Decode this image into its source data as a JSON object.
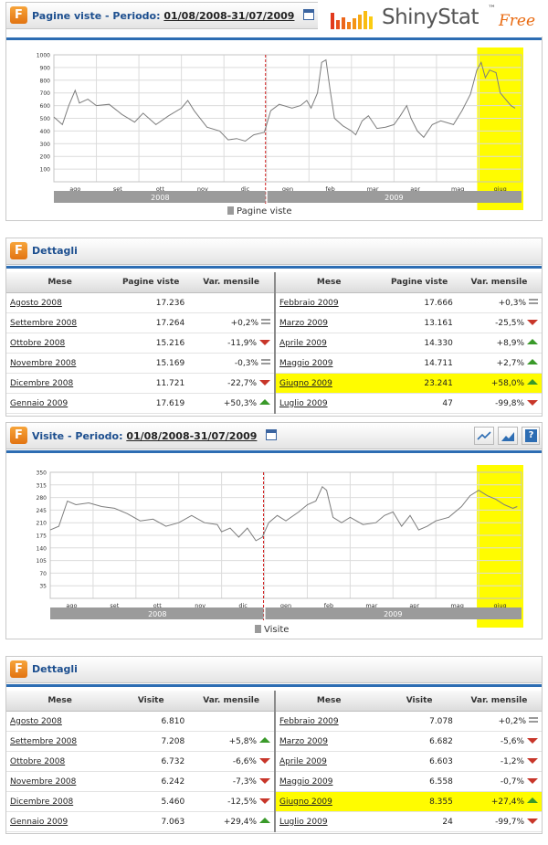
{
  "brand": {
    "name": "ShinyStat",
    "tm": "™",
    "edition": "Free",
    "colors": {
      "accent": "#e96b12",
      "title": "#1d4f8f",
      "blue_rule": "#2d6db3",
      "highlight": "#fffc00",
      "up": "#3a9a2a",
      "down": "#c8362a"
    }
  },
  "pv_panel": {
    "title": "Pagine viste",
    "period_label": "- Periodo:",
    "range": "01/08/2008-31/07/2009",
    "icon": "calendar-icon"
  },
  "pv_chart": {
    "type": "line",
    "yticks": [
      "1000",
      "900",
      "800",
      "700",
      "600",
      "500",
      "400",
      "300",
      "200",
      "100"
    ],
    "ylim": [
      0,
      1000
    ],
    "months": [
      "ago",
      "set",
      "ott",
      "nov",
      "dic",
      "gen",
      "feb",
      "mar",
      "apr",
      "mag",
      "giug"
    ],
    "years": [
      "2008",
      "2009"
    ],
    "legend": "Pagine viste",
    "highlight_month": "giug",
    "series": [
      {
        "x": 0,
        "y": 510
      },
      {
        "x": 0.2,
        "y": 450
      },
      {
        "x": 0.35,
        "y": 600
      },
      {
        "x": 0.5,
        "y": 720
      },
      {
        "x": 0.6,
        "y": 620
      },
      {
        "x": 0.8,
        "y": 650
      },
      {
        "x": 1,
        "y": 600
      },
      {
        "x": 1.3,
        "y": 610
      },
      {
        "x": 1.6,
        "y": 530
      },
      {
        "x": 1.9,
        "y": 470
      },
      {
        "x": 2.1,
        "y": 540
      },
      {
        "x": 2.4,
        "y": 450
      },
      {
        "x": 2.7,
        "y": 520
      },
      {
        "x": 3,
        "y": 580
      },
      {
        "x": 3.15,
        "y": 640
      },
      {
        "x": 3.3,
        "y": 560
      },
      {
        "x": 3.6,
        "y": 430
      },
      {
        "x": 3.9,
        "y": 400
      },
      {
        "x": 4.1,
        "y": 330
      },
      {
        "x": 4.3,
        "y": 340
      },
      {
        "x": 4.5,
        "y": 320
      },
      {
        "x": 4.7,
        "y": 370
      },
      {
        "x": 4.95,
        "y": 390
      },
      {
        "x": 5.1,
        "y": 560
      },
      {
        "x": 5.3,
        "y": 610
      },
      {
        "x": 5.6,
        "y": 580
      },
      {
        "x": 5.8,
        "y": 600
      },
      {
        "x": 5.95,
        "y": 640
      },
      {
        "x": 6.05,
        "y": 580
      },
      {
        "x": 6.2,
        "y": 700
      },
      {
        "x": 6.3,
        "y": 940
      },
      {
        "x": 6.4,
        "y": 960
      },
      {
        "x": 6.5,
        "y": 720
      },
      {
        "x": 6.6,
        "y": 500
      },
      {
        "x": 6.8,
        "y": 440
      },
      {
        "x": 7,
        "y": 400
      },
      {
        "x": 7.1,
        "y": 370
      },
      {
        "x": 7.25,
        "y": 480
      },
      {
        "x": 7.4,
        "y": 520
      },
      {
        "x": 7.6,
        "y": 420
      },
      {
        "x": 7.8,
        "y": 430
      },
      {
        "x": 8,
        "y": 450
      },
      {
        "x": 8.15,
        "y": 520
      },
      {
        "x": 8.3,
        "y": 600
      },
      {
        "x": 8.4,
        "y": 500
      },
      {
        "x": 8.55,
        "y": 400
      },
      {
        "x": 8.7,
        "y": 350
      },
      {
        "x": 8.9,
        "y": 450
      },
      {
        "x": 9.1,
        "y": 480
      },
      {
        "x": 9.4,
        "y": 450
      },
      {
        "x": 9.6,
        "y": 560
      },
      {
        "x": 9.8,
        "y": 690
      },
      {
        "x": 9.95,
        "y": 880
      },
      {
        "x": 10.05,
        "y": 940
      },
      {
        "x": 10.15,
        "y": 820
      },
      {
        "x": 10.25,
        "y": 880
      },
      {
        "x": 10.4,
        "y": 860
      },
      {
        "x": 10.5,
        "y": 700
      },
      {
        "x": 10.6,
        "y": 660
      },
      {
        "x": 10.75,
        "y": 600
      },
      {
        "x": 10.85,
        "y": 580
      }
    ]
  },
  "pv_details": {
    "title": "Dettagli",
    "headers": [
      "Mese",
      "Pagine viste",
      "Var. mensile"
    ],
    "left": [
      {
        "m": "Agosto 2008",
        "n": "17.236",
        "v": "",
        "t": ""
      },
      {
        "m": "Settembre 2008",
        "n": "17.264",
        "v": "+0,2%",
        "t": "eq"
      },
      {
        "m": "Ottobre 2008",
        "n": "15.216",
        "v": "-11,9%",
        "t": "dn"
      },
      {
        "m": "Novembre 2008",
        "n": "15.169",
        "v": "-0,3%",
        "t": "eq"
      },
      {
        "m": "Dicembre 2008",
        "n": "11.721",
        "v": "-22,7%",
        "t": "dn"
      },
      {
        "m": "Gennaio 2009",
        "n": "17.619",
        "v": "+50,3%",
        "t": "up"
      }
    ],
    "right": [
      {
        "m": "Febbraio 2009",
        "n": "17.666",
        "v": "+0,3%",
        "t": "eq"
      },
      {
        "m": "Marzo 2009",
        "n": "13.161",
        "v": "-25,5%",
        "t": "dn"
      },
      {
        "m": "Aprile 2009",
        "n": "14.330",
        "v": "+8,9%",
        "t": "up"
      },
      {
        "m": "Maggio 2009",
        "n": "14.711",
        "v": "+2,7%",
        "t": "up"
      },
      {
        "m": "Giugno 2009",
        "n": "23.241",
        "v": "+58,0%",
        "t": "up",
        "hl": true
      },
      {
        "m": "Luglio 2009",
        "n": "47",
        "v": "-99,8%",
        "t": "dn"
      }
    ]
  },
  "vis_panel": {
    "title": "Visite",
    "period_label": "- Periodo:",
    "range": "01/08/2008-31/07/2009",
    "icon": "calendar-icon",
    "buttons": [
      "line-chart-icon",
      "area-chart-icon",
      "help-icon"
    ],
    "help_glyph": "?"
  },
  "vis_chart": {
    "type": "line",
    "yticks": [
      "350",
      "315",
      "280",
      "245",
      "210",
      "175",
      "140",
      "105",
      "70",
      "35"
    ],
    "ylim": [
      0,
      350
    ],
    "months": [
      "ago",
      "set",
      "ott",
      "nov",
      "dic",
      "gen",
      "feb",
      "mar",
      "apr",
      "mag",
      "giug"
    ],
    "years": [
      "2008",
      "2009"
    ],
    "legend": "Visite",
    "highlight_month": "giug",
    "series": [
      {
        "x": 0,
        "y": 190
      },
      {
        "x": 0.2,
        "y": 200
      },
      {
        "x": 0.4,
        "y": 270
      },
      {
        "x": 0.6,
        "y": 260
      },
      {
        "x": 0.9,
        "y": 265
      },
      {
        "x": 1.2,
        "y": 255
      },
      {
        "x": 1.5,
        "y": 250
      },
      {
        "x": 1.8,
        "y": 235
      },
      {
        "x": 2.1,
        "y": 215
      },
      {
        "x": 2.4,
        "y": 220
      },
      {
        "x": 2.7,
        "y": 200
      },
      {
        "x": 3,
        "y": 210
      },
      {
        "x": 3.3,
        "y": 230
      },
      {
        "x": 3.6,
        "y": 210
      },
      {
        "x": 3.9,
        "y": 205
      },
      {
        "x": 4,
        "y": 185
      },
      {
        "x": 4.2,
        "y": 195
      },
      {
        "x": 4.4,
        "y": 170
      },
      {
        "x": 4.6,
        "y": 195
      },
      {
        "x": 4.8,
        "y": 160
      },
      {
        "x": 4.95,
        "y": 170
      },
      {
        "x": 5.1,
        "y": 210
      },
      {
        "x": 5.3,
        "y": 230
      },
      {
        "x": 5.5,
        "y": 215
      },
      {
        "x": 5.8,
        "y": 240
      },
      {
        "x": 6,
        "y": 260
      },
      {
        "x": 6.2,
        "y": 270
      },
      {
        "x": 6.35,
        "y": 310
      },
      {
        "x": 6.45,
        "y": 300
      },
      {
        "x": 6.6,
        "y": 225
      },
      {
        "x": 6.8,
        "y": 210
      },
      {
        "x": 7,
        "y": 225
      },
      {
        "x": 7.3,
        "y": 205
      },
      {
        "x": 7.6,
        "y": 210
      },
      {
        "x": 7.8,
        "y": 230
      },
      {
        "x": 8,
        "y": 240
      },
      {
        "x": 8.2,
        "y": 200
      },
      {
        "x": 8.4,
        "y": 230
      },
      {
        "x": 8.6,
        "y": 190
      },
      {
        "x": 8.8,
        "y": 200
      },
      {
        "x": 9,
        "y": 215
      },
      {
        "x": 9.3,
        "y": 225
      },
      {
        "x": 9.6,
        "y": 255
      },
      {
        "x": 9.8,
        "y": 285
      },
      {
        "x": 10,
        "y": 300
      },
      {
        "x": 10.2,
        "y": 285
      },
      {
        "x": 10.4,
        "y": 275
      },
      {
        "x": 10.6,
        "y": 260
      },
      {
        "x": 10.8,
        "y": 250
      },
      {
        "x": 10.9,
        "y": 255
      }
    ]
  },
  "vis_details": {
    "title": "Dettagli",
    "headers": [
      "Mese",
      "Visite",
      "Var. mensile"
    ],
    "left": [
      {
        "m": "Agosto 2008",
        "n": "6.810",
        "v": "",
        "t": ""
      },
      {
        "m": "Settembre 2008",
        "n": "7.208",
        "v": "+5,8%",
        "t": "up"
      },
      {
        "m": "Ottobre 2008",
        "n": "6.732",
        "v": "-6,6%",
        "t": "dn"
      },
      {
        "m": "Novembre 2008",
        "n": "6.242",
        "v": "-7,3%",
        "t": "dn"
      },
      {
        "m": "Dicembre 2008",
        "n": "5.460",
        "v": "-12,5%",
        "t": "dn"
      },
      {
        "m": "Gennaio 2009",
        "n": "7.063",
        "v": "+29,4%",
        "t": "up"
      }
    ],
    "right": [
      {
        "m": "Febbraio 2009",
        "n": "7.078",
        "v": "+0,2%",
        "t": "eq"
      },
      {
        "m": "Marzo 2009",
        "n": "6.682",
        "v": "-5,6%",
        "t": "dn"
      },
      {
        "m": "Aprile 2009",
        "n": "6.603",
        "v": "-1,2%",
        "t": "dn"
      },
      {
        "m": "Maggio 2009",
        "n": "6.558",
        "v": "-0,7%",
        "t": "dn"
      },
      {
        "m": "Giugno 2009",
        "n": "8.355",
        "v": "+27,4%",
        "t": "up",
        "hl": true
      },
      {
        "m": "Luglio 2009",
        "n": "24",
        "v": "-99,7%",
        "t": "dn"
      }
    ]
  }
}
